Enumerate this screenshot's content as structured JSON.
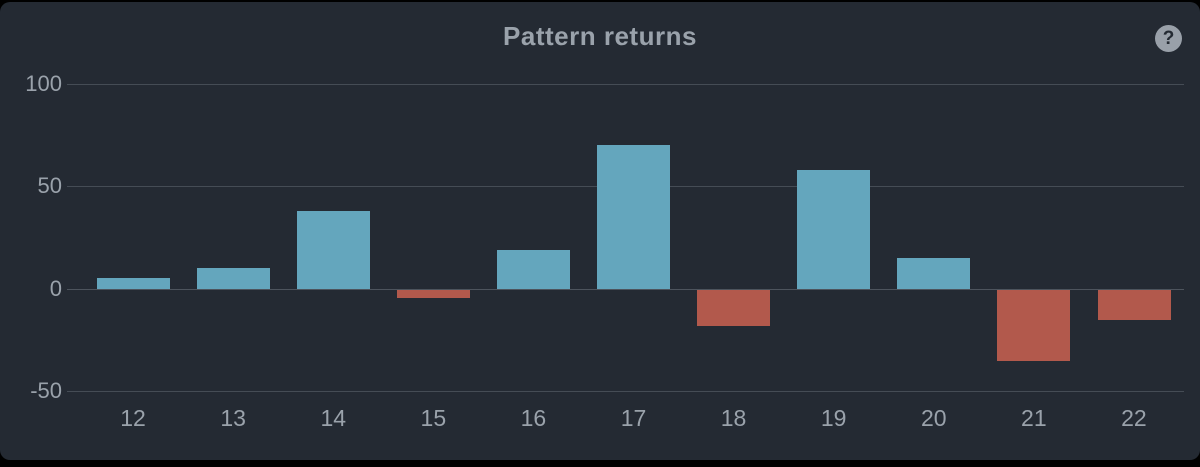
{
  "header": {
    "title": "Pattern returns",
    "help_icon": "?"
  },
  "colors": {
    "page_background": "#000000",
    "card_background": "#242a33",
    "positive_bar": "#64a6bd",
    "negative_bar": "#b2594c",
    "text": "#9aa2ab",
    "gridline": "#454c55"
  },
  "chart_data": {
    "type": "bar",
    "title": "Pattern returns",
    "categories": [
      "12",
      "13",
      "14",
      "15",
      "16",
      "17",
      "18",
      "19",
      "20",
      "21",
      "22"
    ],
    "values": [
      5,
      10,
      38,
      -4,
      19,
      70,
      -18,
      58,
      15,
      -35,
      -15
    ],
    "series_colors": {
      "positive": "#64a6bd",
      "negative": "#b2594c"
    },
    "xlabel": "",
    "ylabel": "",
    "y_ticks": [
      100,
      50,
      0,
      -50
    ],
    "ylim": [
      -50,
      100
    ],
    "grid": true,
    "legend": false
  }
}
